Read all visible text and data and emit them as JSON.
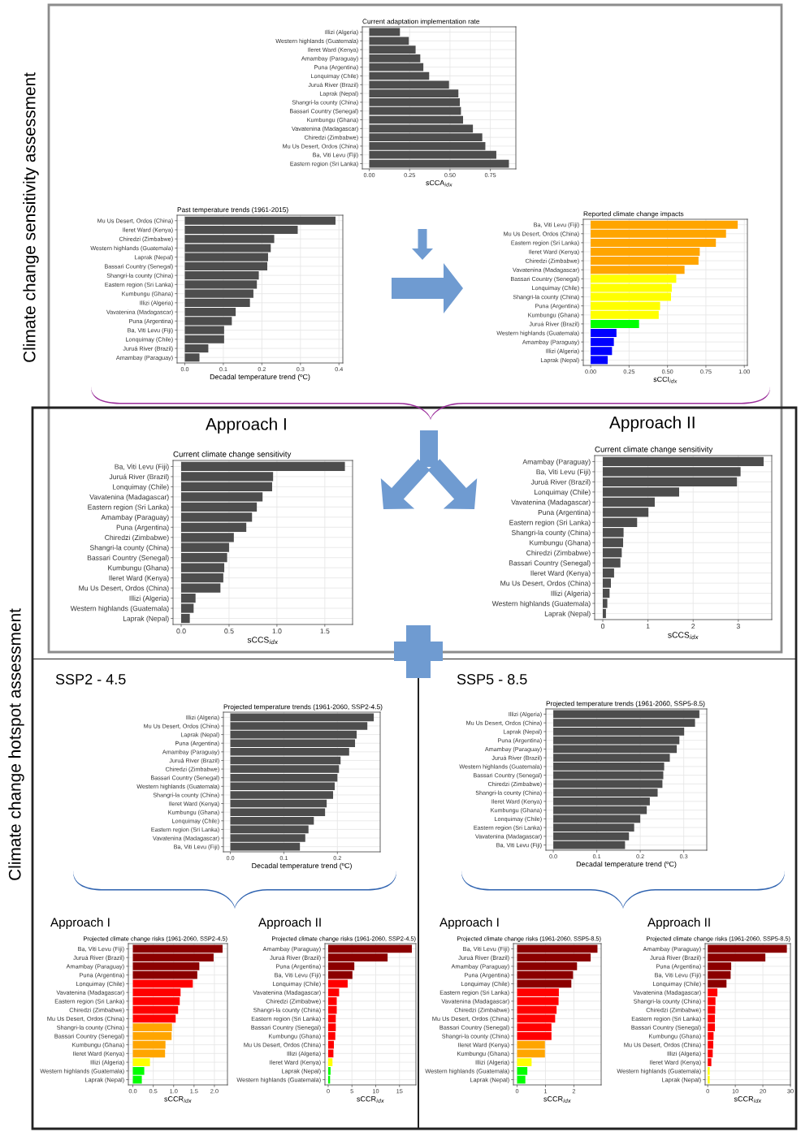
{
  "chart_data": [
    {
      "type": "bar",
      "orientation": "horizontal",
      "title": "Current adaptation implementation rate",
      "xlabel": "sCCA$_{idx}$",
      "grid": true,
      "color": "#4d4d4d",
      "annotations": [
        "Climate change sensitivity assessment"
      ],
      "categories": [
        "Illizi (Algeria)",
        "Western highlands (Guatemala)",
        "Ileret Ward (Kenya)",
        "Amambay (Paraguay)",
        "Puna (Argentina)",
        "Lonquimay (Chile)",
        "Juruá River (Brazil)",
        "Laprak (Nepal)",
        "Shangri-la county (China)",
        "Bassari Country (Senegal)",
        "Kumbungu (Ghana)",
        "Vavatenina (Madagascar)",
        "Chiredzi (Zimbabwe)",
        "Mu Us Desert, Ordos (China)",
        "Ba, Viti Levu (Fiji)",
        "Eastern region (Sri Lanka)"
      ],
      "values": [
        0.19,
        0.245,
        0.287,
        0.316,
        0.335,
        0.371,
        0.494,
        0.552,
        0.561,
        0.568,
        0.581,
        0.642,
        0.7,
        0.719,
        0.787,
        0.865
      ],
      "xlim": [
        -0.043,
        0.908
      ],
      "xticks": [
        {
          "value": 0,
          "label": "0.00"
        },
        {
          "value": 0.25,
          "label": "0.25"
        },
        {
          "value": 0.5,
          "label": "0.50"
        },
        {
          "value": 0.75,
          "label": "0.75"
        }
      ]
    },
    {
      "type": "bar",
      "orientation": "horizontal",
      "title": "Past temperature trends (1961-2015)",
      "xlabel": "Decadal temperature trend (ºC)",
      "grid": true,
      "color": "#4d4d4d",
      "categories": [
        "Mu Us Desert, Ordos (China)",
        "Ileret Ward (Kenya)",
        "Chiredzi (Zimbabwe)",
        "Western highlands (Guatemala)",
        "Laprak (Nepal)",
        "Bassari Country (Senegal)",
        "Shangri-la county (China)",
        "Eastern region (Sri Lanka)",
        "Kumbungu (Ghana)",
        "Illizi (Algeria)",
        "Vavatenina (Madagascar)",
        "Puna (Argentina)",
        "Ba, Viti Levu (Fiji)",
        "Lonquimay (Chile)",
        "Juruá River (Brazil)",
        "Amambay (Paraguay)"
      ],
      "values": [
        0.391,
        0.293,
        0.232,
        0.223,
        0.216,
        0.214,
        0.192,
        0.187,
        0.178,
        0.169,
        0.132,
        0.122,
        0.102,
        0.102,
        0.061,
        0.038
      ],
      "xlim": [
        -0.02,
        0.41
      ],
      "xticks": [
        {
          "value": 0,
          "label": "0.0"
        },
        {
          "value": 0.1,
          "label": "0.1"
        },
        {
          "value": 0.2,
          "label": "0.2"
        },
        {
          "value": 0.3,
          "label": "0.3"
        },
        {
          "value": 0.4,
          "label": "0.4"
        }
      ]
    },
    {
      "type": "bar",
      "orientation": "horizontal",
      "title": "Reported climate change impacts",
      "xlabel": "sCCI$_{idx}$",
      "grid": true,
      "categories": [
        "Ba, Viti Levu (Fiji)",
        "Mu Us Desert, Ordos (China)",
        "Eastern region (Sri Lanka)",
        "Ileret Ward (Kenya)",
        "Chiredzi (Zimbabwe)",
        "Vavatenina (Madagascar)",
        "Bassari Country (Senegal)",
        "Lonquimay (Chile)",
        "Shangri-la county (China)",
        "Puna (Argentina)",
        "Kumbungu (Ghana)",
        "Juruá River (Brazil)",
        "Western highlands (Guatemala)",
        "Amambay (Paraguay)",
        "Illizi (Algeria)",
        "Laprak (Nepal)"
      ],
      "values": [
        0.957,
        0.881,
        0.815,
        0.71,
        0.702,
        0.611,
        0.557,
        0.528,
        0.523,
        0.452,
        0.443,
        0.315,
        0.168,
        0.151,
        0.139,
        0.111
      ],
      "colors": [
        "#ffa500",
        "#ffa500",
        "#ffa500",
        "#ffa500",
        "#ffa500",
        "#ffa500",
        "#ffff00",
        "#ffff00",
        "#ffff00",
        "#ffff00",
        "#ffff00",
        "#00ff00",
        "#0000ff",
        "#0000ff",
        "#0000ff",
        "#0000ff"
      ],
      "xlim": [
        -0.048,
        1.02
      ],
      "xticks": [
        {
          "value": 0,
          "label": "0.00"
        },
        {
          "value": 0.25,
          "label": "0.25"
        },
        {
          "value": 0.5,
          "label": "0.50"
        },
        {
          "value": 0.75,
          "label": "0.75"
        },
        {
          "value": 1,
          "label": "1.00"
        }
      ]
    },
    {
      "type": "bar",
      "orientation": "horizontal",
      "title": "Approach I",
      "subtitle": "Current climate change sensitivity",
      "xlabel": "sCCS$_{idx}$",
      "grid": true,
      "color": "#4d4d4d",
      "categories": [
        "Ba, Viti Levu (Fiji)",
        "Juruá River (Brazil)",
        "Lonquimay (Chile)",
        "Vavatenina (Madagascar)",
        "Eastern region (Sri Lanka)",
        "Amambay (Paraguay)",
        "Puna (Argentina)",
        "Chiredzi (Zimbabwe)",
        "Shangri-la county (China)",
        "Bassari Country (Senegal)",
        "Kumbungu (Ghana)",
        "Ileret Ward (Kenya)",
        "Mu Us Desert, Ordos (China)",
        "Illizi (Algeria)",
        "Western highlands (Guatemala)",
        "Laprak (Nepal)"
      ],
      "values": [
        1.71,
        0.96,
        0.95,
        0.85,
        0.79,
        0.74,
        0.68,
        0.55,
        0.5,
        0.48,
        0.45,
        0.44,
        0.41,
        0.15,
        0.13,
        0.09
      ],
      "xlim": [
        -0.085,
        1.79
      ],
      "xticks": [
        {
          "value": 0,
          "label": "0.0"
        },
        {
          "value": 0.5,
          "label": "0.5"
        },
        {
          "value": 1,
          "label": "1.0"
        },
        {
          "value": 1.5,
          "label": "1.5"
        }
      ]
    },
    {
      "type": "bar",
      "orientation": "horizontal",
      "title": "Approach II",
      "subtitle": "Current climate change sensitivity",
      "xlabel": "sCCS$_{idx}$",
      "grid": true,
      "color": "#4d4d4d",
      "categories": [
        "Amambay (Paraguay)",
        "Ba, Viti Levu (Fiji)",
        "Juruá River (Brazil)",
        "Lonquimay (Chile)",
        "Vavatenina (Madagascar)",
        "Puna (Argentina)",
        "Eastern region (Sri Lanka)",
        "Shangri-la county (China)",
        "Kumbungu (Ghana)",
        "Chiredzi (Zimbabwe)",
        "Bassari Country (Senegal)",
        "Ileret Ward (Kenya)",
        "Mu Us Desert, Ordos (China)",
        "Illizi (Algeria)",
        "Western highlands (Guatemala)",
        "Laprak (Nepal)"
      ],
      "values": [
        3.56,
        3.05,
        2.97,
        1.69,
        1.15,
        1.01,
        0.76,
        0.46,
        0.45,
        0.42,
        0.39,
        0.25,
        0.18,
        0.15,
        0.1,
        0.07
      ],
      "xlim": [
        -0.18,
        3.74
      ],
      "xticks": [
        0,
        1,
        2,
        3
      ]
    },
    {
      "type": "bar",
      "orientation": "horizontal",
      "title": "SSP2 - 4.5",
      "subtitle": "Projected temperature trends (1961-2060, SSP2-4.5)",
      "xlabel": "Decadal temperature trend (ºC)",
      "grid": true,
      "color": "#4d4d4d",
      "annotations": [
        "Climate change hotspot assessment"
      ],
      "categories": [
        "Illizi (Algeria)",
        "Mu Us Desert, Ordos (China)",
        "Laprak (Nepal)",
        "Puna (Argentina)",
        "Amambay (Paraguay)",
        "Juruá River (Brazil)",
        "Chiredzi (Zimbabwe)",
        "Bassari Country (Senegal)",
        "Western highlands (Guatemala)",
        "Shangri-la county (China)",
        "Ileret Ward (Kenya)",
        "Kumbungu (Ghana)",
        "Lonquimay (Chile)",
        "Eastern region (Sri Lanka)",
        "Vavatenina (Madagascar)",
        "Ba, Viti Levu (Fiji)"
      ],
      "values": [
        0.268,
        0.256,
        0.236,
        0.233,
        0.222,
        0.206,
        0.203,
        0.2,
        0.195,
        0.192,
        0.18,
        0.177,
        0.156,
        0.146,
        0.14,
        0.13
      ],
      "xlim": [
        -0.013,
        0.28
      ],
      "xticks": [
        {
          "value": 0,
          "label": "0.0"
        },
        {
          "value": 0.1,
          "label": "0.1"
        },
        {
          "value": 0.2,
          "label": "0.2"
        }
      ]
    },
    {
      "type": "bar",
      "orientation": "horizontal",
      "title": "SSP5 - 8.5",
      "subtitle": "Projected temperature trends (1961-2060, SSP5-8.5)",
      "xlabel": "Decadal temperature trend (ºC)",
      "grid": true,
      "color": "#4d4d4d",
      "categories": [
        "Illizi (Algeria)",
        "Mu Us Desert, Ordos (China)",
        "Laprak (Nepal)",
        "Puna (Argentina)",
        "Amambay (Paraguay)",
        "Juruá River (Brazil)",
        "Western highlands (Guatemala)",
        "Bassari Country (Senegal)",
        "Chiredzi (Zimbabwe)",
        "Shangri-la county (China)",
        "Ileret Ward (Kenya)",
        "Kumbungu (Ghana)",
        "Lonquimay (Chile)",
        "Eastern region (Sri Lanka)",
        "Vavatenina (Madagascar)",
        "Ba, Viti Levu (Fiji)"
      ],
      "values": [
        0.336,
        0.326,
        0.301,
        0.29,
        0.284,
        0.268,
        0.255,
        0.253,
        0.251,
        0.24,
        0.222,
        0.215,
        0.2,
        0.186,
        0.174,
        0.165
      ],
      "xlim": [
        -0.017,
        0.353
      ],
      "xticks": [
        {
          "value": 0,
          "label": "0.0"
        },
        {
          "value": 0.1,
          "label": "0.1"
        },
        {
          "value": 0.2,
          "label": "0.2"
        },
        {
          "value": 0.3,
          "label": "0.3"
        }
      ]
    },
    {
      "type": "bar",
      "orientation": "horizontal",
      "title": "Approach I",
      "subtitle": "Projected climate change risks (1961-2060, SSP2-4.5)",
      "xlabel": "sCCR$_{idx}$",
      "grid": true,
      "categories": [
        "Ba, Viti Levu (Fiji)",
        "Juruá River (Brazil)",
        "Amambay (Paraguay)",
        "Puna (Argentina)",
        "Lonquimay (Chile)",
        "Vavatenina (Madagascar)",
        "Eastern region (Sri Lanka)",
        "Chiredzi (Zimbabwe)",
        "Mu Us Desert, Ordos (China)",
        "Shangri-la county (China)",
        "Bassari Country (Senegal)",
        "Kumbungu (Ghana)",
        "Ileret Ward (Kenya)",
        "Illizi (Algeria)",
        "Western highlands (Guatemala)",
        "Laprak (Nepal)"
      ],
      "values": [
        2.2,
        1.98,
        1.63,
        1.58,
        1.47,
        1.17,
        1.15,
        1.11,
        1.05,
        0.96,
        0.95,
        0.8,
        0.79,
        0.42,
        0.28,
        0.22
      ],
      "colors": [
        "#8b0000",
        "#8b0000",
        "#8b0000",
        "#8b0000",
        "#ff0000",
        "#ff0000",
        "#ff0000",
        "#ff0000",
        "#ff0000",
        "#ffa500",
        "#ffa500",
        "#ffa500",
        "#ffa500",
        "#ffff00",
        "#00ff00",
        "#00ff00"
      ],
      "xlim": [
        -0.11,
        2.32
      ],
      "xticks": [
        {
          "value": 0,
          "label": "0.0"
        },
        {
          "value": 0.5,
          "label": "0.5"
        },
        {
          "value": 1,
          "label": "1.0"
        },
        {
          "value": 1.5,
          "label": "1.5"
        },
        {
          "value": 2,
          "label": "2.0"
        }
      ]
    },
    {
      "type": "bar",
      "orientation": "horizontal",
      "title": "Approach II",
      "subtitle": "Projected climate change risks (1961-2060, SSP2-4.5)",
      "xlabel": "sCCR$_{idx}$",
      "grid": true,
      "categories": [
        "Amambay (Paraguay)",
        "Juruá River (Brazil)",
        "Puna (Argentina)",
        "Ba, Viti Levu (Fiji)",
        "Lonquimay (Chile)",
        "Vavatenina (Madagascar)",
        "Chiredzi (Zimbabwe)",
        "Shangri-la county (China)",
        "Eastern region (Sri Lanka)",
        "Bassari Country (Senegal)",
        "Kumbungu (Ghana)",
        "Mu Us Desert, Ordos (China)",
        "Illizi (Algeria)",
        "Ileret Ward (Kenya)",
        "Laprak (Nepal)",
        "Western highlands (Guatemala)"
      ],
      "values": [
        17.6,
        12.5,
        5.5,
        5.1,
        4.1,
        2.3,
        1.8,
        1.8,
        1.6,
        1.6,
        1.5,
        1.2,
        1.1,
        0.9,
        0.5,
        0.4
      ],
      "colors": [
        "#8b0000",
        "#8b0000",
        "#8b0000",
        "#8b0000",
        "#ff0000",
        "#ff0000",
        "#ff0000",
        "#ff0000",
        "#ff0000",
        "#ff0000",
        "#ff0000",
        "#ff0000",
        "#ff0000",
        "#ffff00",
        "#00ff00",
        "#00ff00"
      ],
      "xlim": [
        -0.68,
        18.46
      ],
      "xticks": [
        0,
        5,
        10,
        15
      ]
    },
    {
      "type": "bar",
      "orientation": "horizontal",
      "title": "Approach I",
      "subtitle": "Projected climate change risks (1961-2060, SSP5-8.5)",
      "xlabel": "sCCR$_{idx}$",
      "grid": true,
      "categories": [
        "Ba, Viti Levu (Fiji)",
        "Juruá River (Brazil)",
        "Amambay (Paraguay)",
        "Puna (Argentina)",
        "Lonquimay (Chile)",
        "Eastern region (Sri Lanka)",
        "Vavatenina (Madagascar)",
        "Chiredzi (Zimbabwe)",
        "Mu Us Desert, Ordos (China)",
        "Bassari Country (Senegal)",
        "Shangri-la county (China)",
        "Ileret Ward (Kenya)",
        "Kumbungu (Ghana)",
        "Illizi (Algeria)",
        "Western highlands (Guatemala)",
        "Laprak (Nepal)"
      ],
      "values": [
        2.83,
        2.59,
        2.11,
        1.97,
        1.91,
        1.47,
        1.46,
        1.39,
        1.34,
        1.21,
        1.21,
        0.98,
        0.98,
        0.51,
        0.36,
        0.29
      ],
      "colors": [
        "#8b0000",
        "#8b0000",
        "#8b0000",
        "#8b0000",
        "#8b0000",
        "#ff0000",
        "#ff0000",
        "#ff0000",
        "#ff0000",
        "#ff0000",
        "#ff0000",
        "#ffa500",
        "#ffa500",
        "#ffff00",
        "#00ff00",
        "#00ff00"
      ],
      "xlim": [
        -0.13,
        2.96
      ],
      "xticks": [
        0,
        1,
        2
      ]
    },
    {
      "type": "bar",
      "orientation": "horizontal",
      "title": "Approach II",
      "subtitle": "Projected climate change risks (1961-2060, SSP5-8.5)",
      "xlabel": "sCCR$_{idx}$",
      "grid": true,
      "categories": [
        "Amambay (Paraguay)",
        "Juruá River (Brazil)",
        "Puna (Argentina)",
        "Ba, Viti Levu (Fiji)",
        "Lonquimay (Chile)",
        "Vavatenina (Madagascar)",
        "Shangri-la county (China)",
        "Chiredzi (Zimbabwe)",
        "Eastern region (Sri Lanka)",
        "Bassari Country (Senegal)",
        "Kumbungu (Ghana)",
        "Mu Us Desert, Ordos (China)",
        "Illizi (Algeria)",
        "Ileret Ward (Kenya)",
        "Western highlands (Guatemala)",
        "Laprak (Nepal)"
      ],
      "values": [
        28.7,
        20.9,
        8.5,
        8.3,
        6.8,
        3.5,
        2.8,
        2.7,
        2.6,
        2.6,
        2.1,
        2,
        1.8,
        1.3,
        0.7,
        0.7
      ],
      "colors": [
        "#8b0000",
        "#8b0000",
        "#8b0000",
        "#8b0000",
        "#8b0000",
        "#ff0000",
        "#ff0000",
        "#ff0000",
        "#ff0000",
        "#ff0000",
        "#ff0000",
        "#ff0000",
        "#ff0000",
        "#ff0000",
        "#ffff00",
        "#ffff00"
      ],
      "xlim": [
        -0.95,
        30
      ],
      "xticks": [
        0,
        10,
        20,
        30
      ]
    }
  ]
}
